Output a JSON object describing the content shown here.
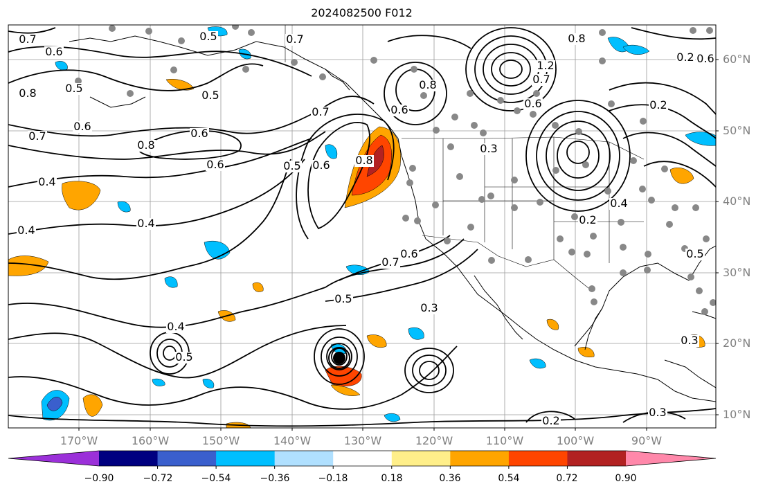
{
  "title": "2024082500 F012",
  "map": {
    "lat_labels": [
      "60°N",
      "50°N",
      "40°N",
      "30°N",
      "20°N",
      "10°N"
    ],
    "lon_labels": [
      "170°W",
      "160°W",
      "150°W",
      "140°W",
      "130°W",
      "120°W",
      "110°W",
      "100°W",
      "90°W"
    ],
    "gridlines": true,
    "coastlines": true,
    "country_borders": true,
    "contour_color": "#000000",
    "marker_color": "#888888",
    "contour_labels": [
      "0.7",
      "0.6",
      "0.5",
      "0.7",
      "0.5",
      "0.8",
      "0.5",
      "0.6",
      "0.6",
      "0.7",
      "0.7",
      "0.6",
      "0.8",
      "0.6",
      "0.5",
      "0.4",
      "0.4",
      "0.4",
      "0.8",
      "0.7",
      "0.6",
      "0.5",
      "0.3",
      "0.4",
      "0.5",
      "0.3",
      "0.2",
      "0.2",
      "0.2",
      "0.3",
      "0.8",
      "1.2",
      "0.7",
      "0.6",
      "0.3",
      "0.6",
      "0.4",
      "0.2",
      "0.6",
      "0.5",
      "0.8"
    ]
  },
  "colorbar": {
    "colors": [
      "#9b30d9",
      "#000080",
      "#3a5fcd",
      "#00bfff",
      "#b0e0ff",
      "#ffffff",
      "#ffef8a",
      "#ffa500",
      "#ff4500",
      "#b22222",
      "#ff88aa"
    ],
    "tick_labels": [
      "−0.90",
      "−0.72",
      "−0.54",
      "−0.36",
      "−0.18",
      "0.18",
      "0.36",
      "0.54",
      "0.72",
      "0.90"
    ],
    "extend": "both"
  }
}
